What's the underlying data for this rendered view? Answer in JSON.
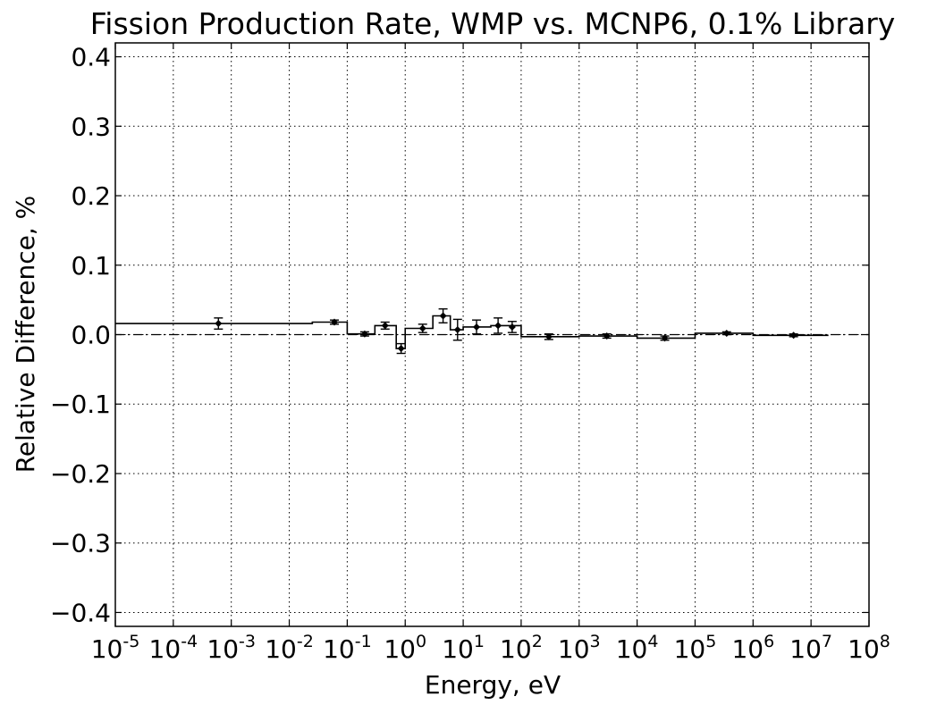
{
  "chart_data": {
    "type": "line",
    "title": "Fission Production Rate, WMP vs. MCNP6, 0.1% Library",
    "xlabel": "Energy, eV",
    "ylabel": "Relative Difference, %",
    "x_scale": "log",
    "xlim": [
      1e-05,
      100000000.0
    ],
    "ylim": [
      -0.42,
      0.42
    ],
    "grid": true,
    "x_ticks": [
      {
        "base": "10",
        "exp": "-5",
        "value": 1e-05
      },
      {
        "base": "10",
        "exp": "-4",
        "value": 0.0001
      },
      {
        "base": "10",
        "exp": "-3",
        "value": 0.001
      },
      {
        "base": "10",
        "exp": "-2",
        "value": 0.01
      },
      {
        "base": "10",
        "exp": "-1",
        "value": 0.1
      },
      {
        "base": "10",
        "exp": "0",
        "value": 1
      },
      {
        "base": "10",
        "exp": "1",
        "value": 10
      },
      {
        "base": "10",
        "exp": "2",
        "value": 100
      },
      {
        "base": "10",
        "exp": "3",
        "value": 1000
      },
      {
        "base": "10",
        "exp": "4",
        "value": 10000
      },
      {
        "base": "10",
        "exp": "5",
        "value": 100000
      },
      {
        "base": "10",
        "exp": "6",
        "value": 1000000
      },
      {
        "base": "10",
        "exp": "7",
        "value": 10000000
      },
      {
        "base": "10",
        "exp": "8",
        "value": 100000000
      }
    ],
    "y_ticks": [
      {
        "label": "0.4",
        "value": 0.4
      },
      {
        "label": "0.3",
        "value": 0.3
      },
      {
        "label": "0.2",
        "value": 0.2
      },
      {
        "label": "0.1",
        "value": 0.1
      },
      {
        "label": "0.0",
        "value": 0.0
      },
      {
        "label": "−0.1",
        "value": -0.1
      },
      {
        "label": "−0.2",
        "value": -0.2
      },
      {
        "label": "−0.3",
        "value": -0.3
      },
      {
        "label": "−0.4",
        "value": -0.4
      }
    ],
    "reference_line": {
      "y": 0.0,
      "style": "dash-dot"
    },
    "step_series": {
      "edges": [
        1e-05,
        0.025,
        0.1,
        0.3,
        0.7,
        1.0,
        3.0,
        6.0,
        10.0,
        30.0,
        100.0,
        1000.0,
        10000.0,
        100000.0,
        1000000.0,
        20000000.0
      ],
      "values": [
        0.016,
        0.018,
        0.001,
        0.013,
        -0.02,
        0.009,
        0.027,
        0.007,
        0.011,
        0.013,
        -0.003,
        -0.002,
        -0.005,
        0.002,
        -0.001
      ]
    },
    "points": [
      {
        "x": 0.0006,
        "y": 0.016,
        "err": 0.008
      },
      {
        "x": 0.06,
        "y": 0.018,
        "err": 0.003
      },
      {
        "x": 0.2,
        "y": 0.001,
        "err": 0.003
      },
      {
        "x": 0.45,
        "y": 0.013,
        "err": 0.005
      },
      {
        "x": 0.85,
        "y": -0.02,
        "err": 0.007
      },
      {
        "x": 2.0,
        "y": 0.009,
        "err": 0.006
      },
      {
        "x": 4.5,
        "y": 0.027,
        "err": 0.01
      },
      {
        "x": 8.0,
        "y": 0.007,
        "err": 0.015
      },
      {
        "x": 17.0,
        "y": 0.011,
        "err": 0.01
      },
      {
        "x": 40.0,
        "y": 0.013,
        "err": 0.011
      },
      {
        "x": 70.0,
        "y": 0.011,
        "err": 0.008
      },
      {
        "x": 300.0,
        "y": -0.003,
        "err": 0.004
      },
      {
        "x": 3000.0,
        "y": -0.002,
        "err": 0.003
      },
      {
        "x": 30000.0,
        "y": -0.005,
        "err": 0.003
      },
      {
        "x": 350000.0,
        "y": 0.002,
        "err": 0.002
      },
      {
        "x": 5000000.0,
        "y": -0.001,
        "err": 0.002
      }
    ]
  }
}
